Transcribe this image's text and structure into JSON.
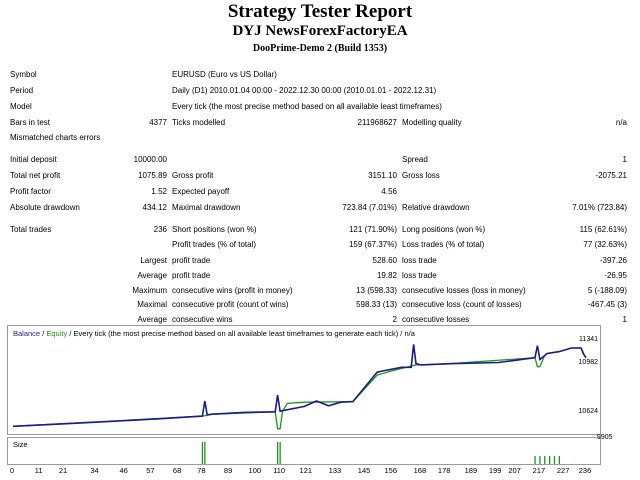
{
  "title": "Strategy Tester Report",
  "subtitle": "DYJ NewsForexFactoryEA",
  "server": "DooPrime-Demo 2 (Build 1353)",
  "info": {
    "symbol_label": "Symbol",
    "symbol_value": "EURUSD (Euro vs US Dollar)",
    "period_label": "Period",
    "period_value": "Daily (D1) 2010.01.04 00:00 - 2022.12.30 00:00 (2010.01.01 - 2022.12.31)",
    "model_label": "Model",
    "model_value": "Every tick (the most precise method based on all available least timeframes)",
    "bars_label": "Bars in test",
    "bars_value": "4377",
    "ticks_label": "Ticks modelled",
    "ticks_value": "211968627",
    "quality_label": "Modelling quality",
    "quality_value": "n/a",
    "mismatch_label": "Mismatched charts errors"
  },
  "stats": {
    "initial_deposit_label": "Initial deposit",
    "initial_deposit": "10000.00",
    "spread_label": "Spread",
    "spread": "1",
    "net_profit_label": "Total net profit",
    "net_profit": "1075.89",
    "gross_profit_label": "Gross profit",
    "gross_profit": "3151.10",
    "gross_loss_label": "Gross loss",
    "gross_loss": "-2075.21",
    "profit_factor_label": "Profit factor",
    "profit_factor": "1.52",
    "expected_payoff_label": "Expected payoff",
    "expected_payoff": "4.56",
    "abs_dd_label": "Absolute drawdown",
    "abs_dd": "434.12",
    "max_dd_label": "Maximal drawdown",
    "max_dd": "723.84 (7.01%)",
    "rel_dd_label": "Relative drawdown",
    "rel_dd": "7.01% (723.84)",
    "total_trades_label": "Total trades",
    "total_trades": "236",
    "short_label": "Short positions (won %)",
    "short": "121 (71.90%)",
    "long_label": "Long positions (won %)",
    "long": "115 (62.61%)",
    "profit_trades_label": "Profit trades (% of total)",
    "profit_trades": "159 (67.37%)",
    "loss_trades_label": "Loss trades (% of total)",
    "loss_trades": "77 (32.63%)",
    "largest_label": "Largest",
    "largest_profit_label": "profit trade",
    "largest_profit": "528.60",
    "largest_loss_label": "loss trade",
    "largest_loss": "-397.26",
    "average_label": "Average",
    "avg_profit_label": "profit trade",
    "avg_profit": "19.82",
    "avg_loss_label": "loss trade",
    "avg_loss": "-26.95",
    "maximum_label": "Maximum",
    "max_cons_wins_label": "consecutive wins (profit in money)",
    "max_cons_wins": "13 (598.33)",
    "max_cons_losses_label": "consecutive losses (loss in money)",
    "max_cons_losses": "5 (-188.09)",
    "maximal_label": "Maximal",
    "maximal_cons_profit_label": "consecutive profit (count of wins)",
    "maximal_cons_profit": "598.33 (13)",
    "maximal_cons_loss_label": "consecutive loss (count of losses)",
    "maximal_cons_loss": "-467.45 (3)",
    "average2_label": "Average",
    "avg_cons_wins_label": "consecutive wins",
    "avg_cons_wins": "2",
    "avg_cons_losses_label": "consecutive losses",
    "avg_cons_losses": "1"
  },
  "chart": {
    "legend_balance": "Balance",
    "legend_sep": " / ",
    "legend_equity": "Equity",
    "legend_rest": " / Every tick (the most precise method based on all available least timeframes to generate each tick) / n/a",
    "size_label": "Size",
    "y_ticks": [
      "11341",
      "10982",
      "10624",
      "9905"
    ],
    "x_ticks": [
      "0",
      "11",
      "21",
      "34",
      "46",
      "57",
      "68",
      "78",
      "89",
      "100",
      "110",
      "121",
      "133",
      "145",
      "156",
      "168",
      "178",
      "189",
      "199",
      "207",
      "217",
      "227",
      "236"
    ],
    "colors": {
      "balance": "#1a1a8c",
      "equity": "#1a9a1a",
      "size": "#1a9a1a"
    }
  },
  "chart_data": {
    "type": "line",
    "x_range": [
      0,
      236
    ],
    "y_range": [
      9905,
      11500
    ],
    "series": [
      {
        "name": "Balance",
        "x": [
          0,
          20,
          40,
          60,
          78,
          79,
          80,
          82,
          95,
          108,
          109,
          110,
          120,
          125,
          130,
          135,
          140,
          150,
          160,
          164,
          165,
          166,
          168,
          180,
          200,
          215,
          216,
          217,
          220,
          225,
          230,
          234,
          235,
          236
        ],
        "y": [
          10000,
          10040,
          10080,
          10125,
          10170,
          10420,
          10190,
          10200,
          10230,
          10240,
          10520,
          10250,
          10330,
          10420,
          10340,
          10400,
          10410,
          10900,
          10980,
          10980,
          11360,
          11040,
          11020,
          11040,
          11060,
          11140,
          11340,
          11110,
          11210,
          11240,
          11300,
          11300,
          11200,
          11140
        ]
      },
      {
        "name": "Equity",
        "x": [
          0,
          78,
          80,
          82,
          108,
          109,
          110,
          111,
          113,
          120,
          140,
          150,
          156,
          160,
          166,
          168,
          180,
          215,
          216,
          217,
          219,
          220,
          225,
          230,
          234,
          235,
          236
        ],
        "y": [
          10000,
          10170,
          10180,
          10200,
          10240,
          9960,
          9960,
          10250,
          10380,
          10400,
          10410,
          10850,
          10920,
          10960,
          11020,
          11020,
          11040,
          11140,
          10990,
          10990,
          11180,
          11210,
          11240,
          11300,
          11300,
          11200,
          11140
        ]
      }
    ],
    "size_bars_x": [
      78,
      79,
      109,
      110,
      215,
      217,
      219,
      221,
      223,
      225
    ]
  }
}
